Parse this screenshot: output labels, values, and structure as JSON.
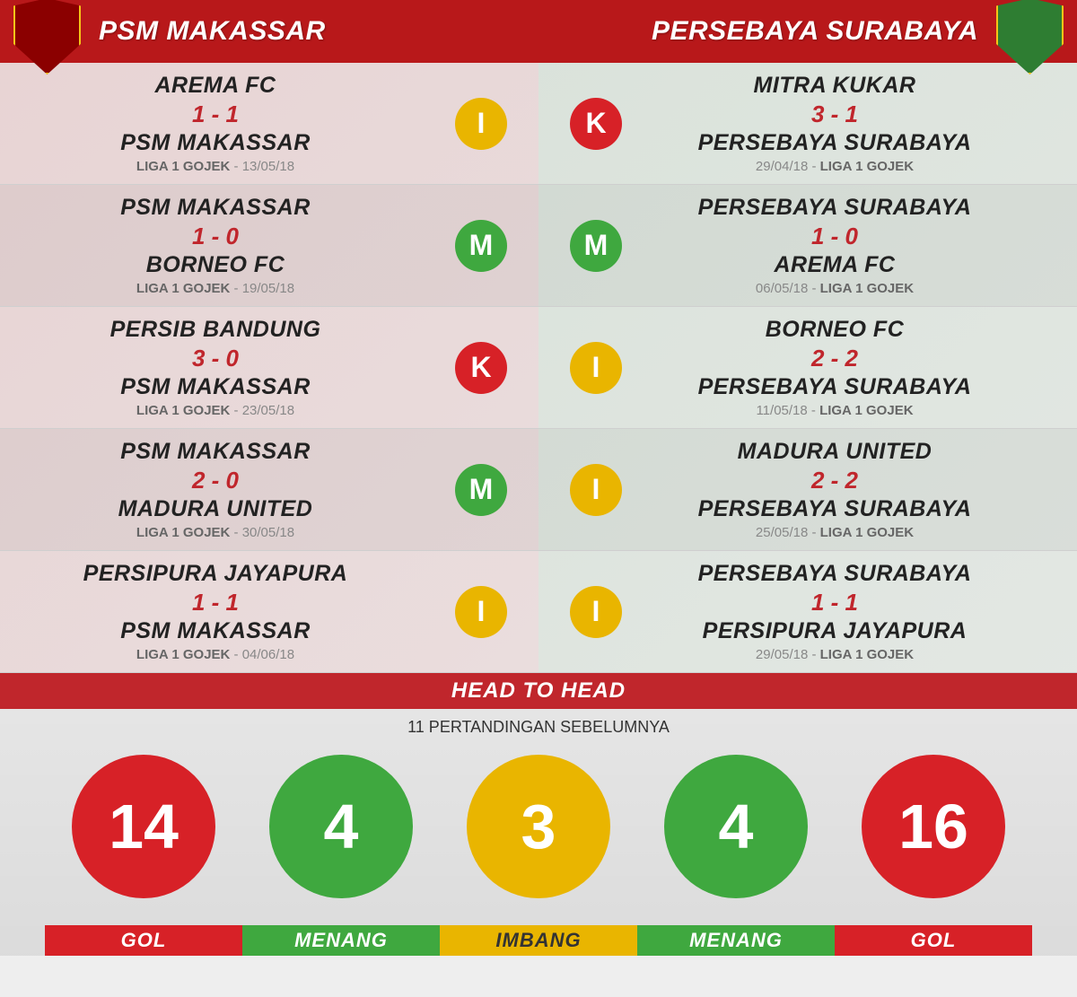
{
  "header": {
    "left_team": "PSM MAKASSAR",
    "right_team": "PERSEBAYA SURABAYA"
  },
  "left_matches": [
    {
      "home": "AREMA FC",
      "score": "1 - 1",
      "away": "PSM MAKASSAR",
      "league": "LIGA 1 GOJEK",
      "date": "13/05/18",
      "result": "I"
    },
    {
      "home": "PSM MAKASSAR",
      "score": "1 - 0",
      "away": "BORNEO FC",
      "league": "LIGA 1 GOJEK",
      "date": "19/05/18",
      "result": "M"
    },
    {
      "home": "PERSIB BANDUNG",
      "score": "3 - 0",
      "away": "PSM MAKASSAR",
      "league": "LIGA 1 GOJEK",
      "date": "23/05/18",
      "result": "K"
    },
    {
      "home": "PSM MAKASSAR",
      "score": "2 - 0",
      "away": "MADURA UNITED",
      "league": "LIGA 1 GOJEK",
      "date": "30/05/18",
      "result": "M"
    },
    {
      "home": "PERSIPURA JAYAPURA",
      "score": "1 - 1",
      "away": "PSM MAKASSAR",
      "league": "LIGA 1 GOJEK",
      "date": "04/06/18",
      "result": "I"
    }
  ],
  "right_matches": [
    {
      "home": "MITRA KUKAR",
      "score": "3 - 1",
      "away": "PERSEBAYA SURABAYA",
      "league": "LIGA 1 GOJEK",
      "date": "29/04/18",
      "result": "K"
    },
    {
      "home": "PERSEBAYA SURABAYA",
      "score": "1 - 0",
      "away": "AREMA FC",
      "league": "LIGA 1 GOJEK",
      "date": "06/05/18",
      "result": "M"
    },
    {
      "home": "BORNEO FC",
      "score": "2 - 2",
      "away": "PERSEBAYA SURABAYA",
      "league": "LIGA 1 GOJEK",
      "date": "11/05/18",
      "result": "I"
    },
    {
      "home": "MADURA UNITED",
      "score": "2 - 2",
      "away": "PERSEBAYA SURABAYA",
      "league": "LIGA 1 GOJEK",
      "date": "25/05/18",
      "result": "I"
    },
    {
      "home": "PERSEBAYA SURABAYA",
      "score": "1 - 1",
      "away": "PERSIPURA JAYAPURA",
      "league": "LIGA 1 GOJEK",
      "date": "29/05/18",
      "result": "I"
    }
  ],
  "h2h": {
    "title": "HEAD TO HEAD",
    "subtitle": "11 PERTANDINGAN SEBELUMNYA",
    "circles": [
      {
        "value": "14",
        "color": "c-red"
      },
      {
        "value": "4",
        "color": "c-green"
      },
      {
        "value": "3",
        "color": "c-yellow"
      },
      {
        "value": "4",
        "color": "c-green"
      },
      {
        "value": "16",
        "color": "c-red"
      }
    ],
    "legend": [
      {
        "label": "GOL",
        "cls": "l-red"
      },
      {
        "label": "MENANG",
        "cls": "l-green"
      },
      {
        "label": "IMBANG",
        "cls": "l-yellow"
      },
      {
        "label": "MENANG",
        "cls": "l-green"
      },
      {
        "label": "GOL",
        "cls": "l-red"
      }
    ]
  },
  "colors": {
    "primary_red": "#c0262c",
    "green": "#3fa83f",
    "yellow": "#e9b500"
  }
}
